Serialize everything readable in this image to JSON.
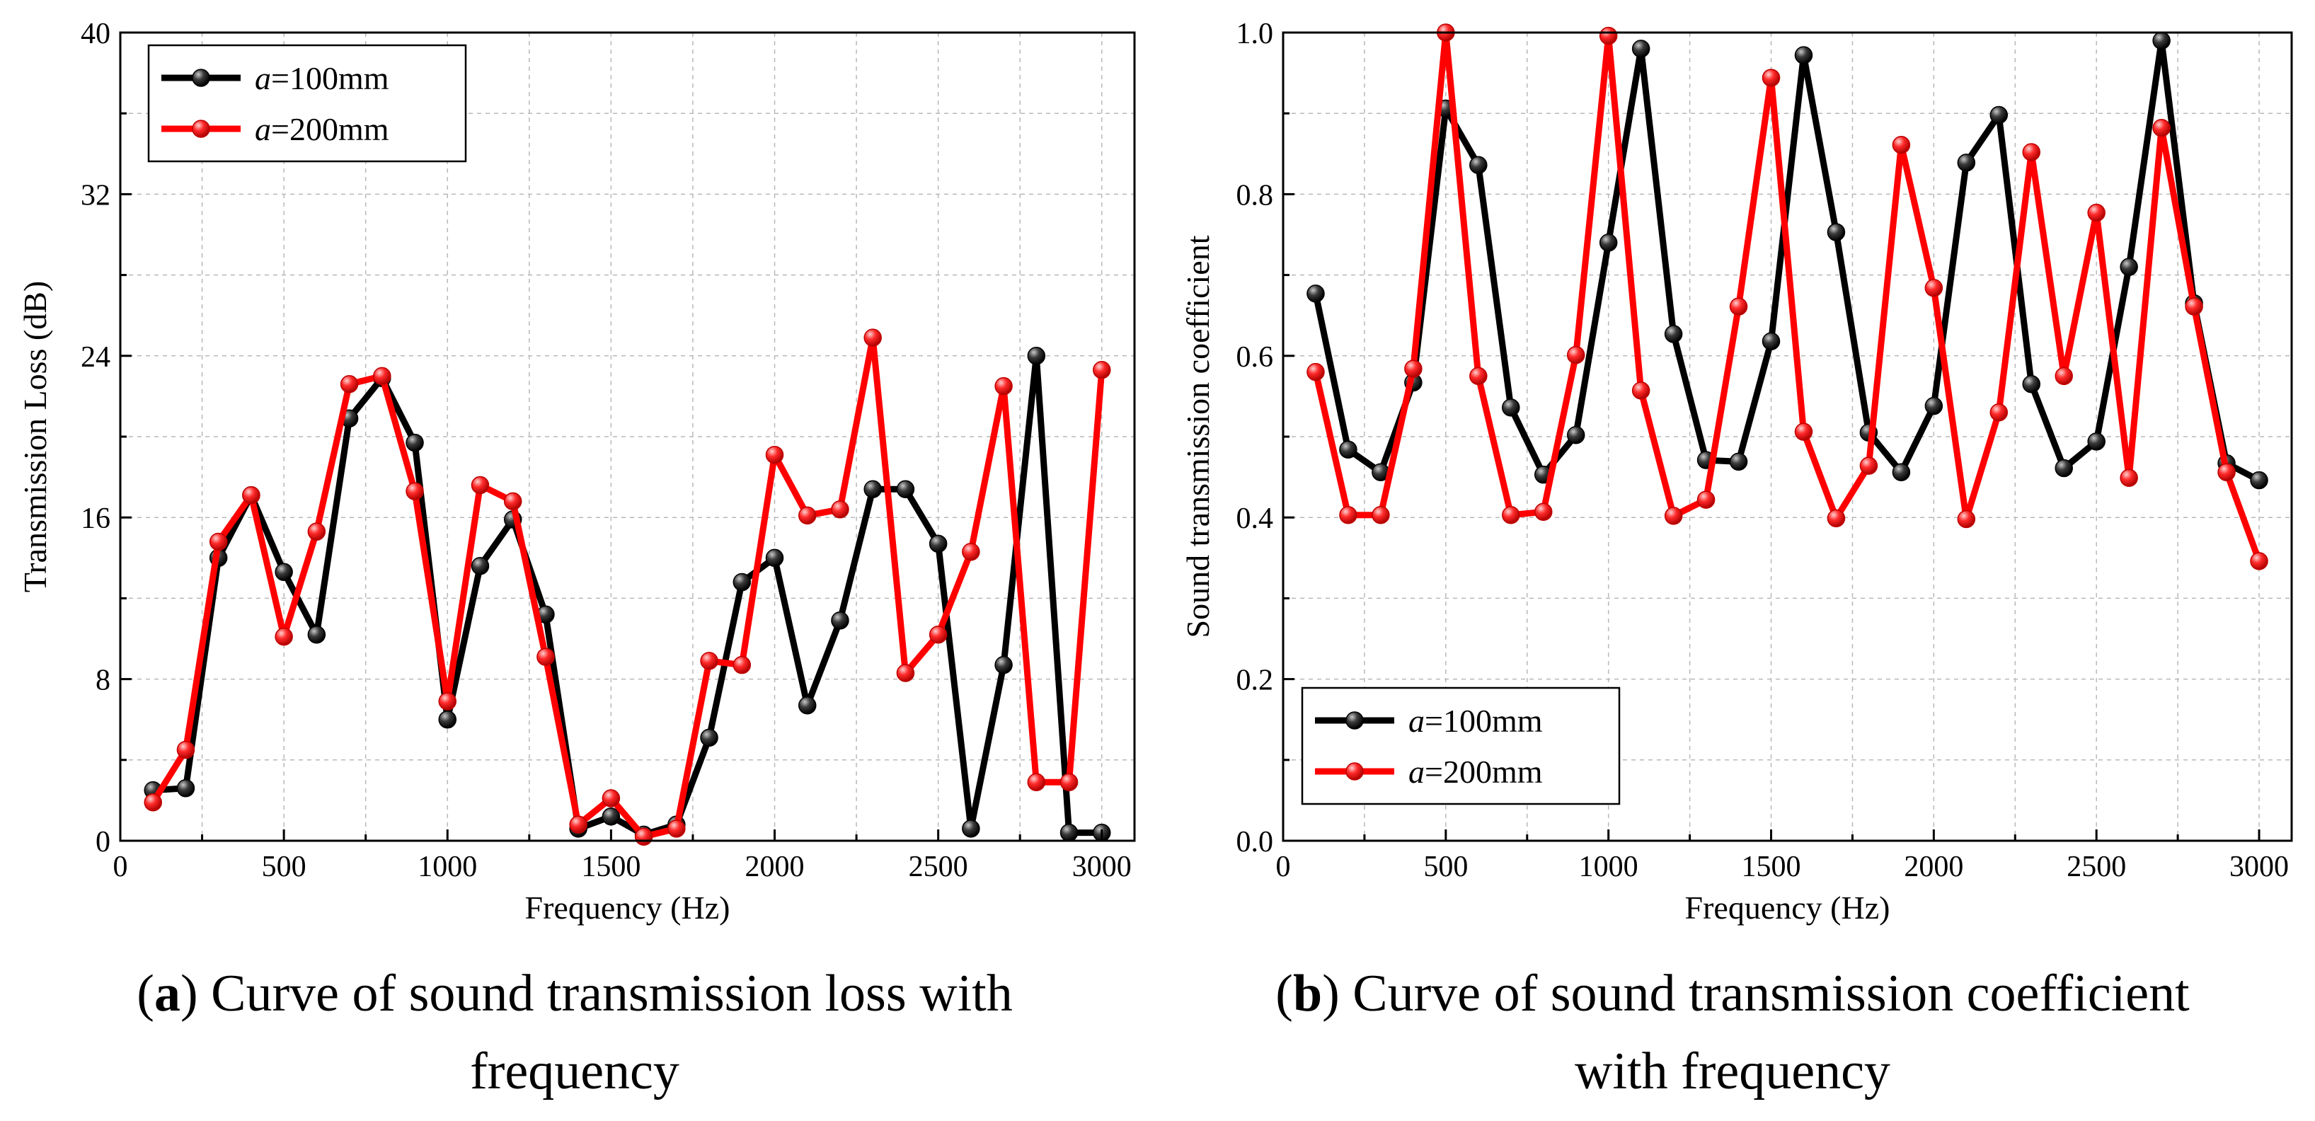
{
  "captions": [
    {
      "letter": "a",
      "open": "(",
      "close": ")",
      "lines": [
        "Curve of sound transmission loss with",
        "frequency"
      ]
    },
    {
      "letter": "b",
      "open": "(",
      "close": ")",
      "lines": [
        "Curve of sound transmission coefficient",
        "with frequency"
      ]
    }
  ],
  "chart_data": [
    {
      "type": "line",
      "xlabel": "Frequency (Hz)",
      "ylabel": "Transmission Loss (dB)",
      "xlim": [
        0,
        3100
      ],
      "ylim": [
        0,
        40
      ],
      "xticks": [
        0,
        500,
        1000,
        1500,
        2000,
        2500,
        3000
      ],
      "yticks": [
        0,
        8,
        16,
        24,
        32,
        40
      ],
      "ytick_labels": [
        "0",
        "8",
        "16",
        "24",
        "32",
        "40"
      ],
      "grid": true,
      "legend_position": "top-left",
      "x": [
        100,
        200,
        300,
        400,
        500,
        600,
        700,
        800,
        900,
        1000,
        1100,
        1200,
        1300,
        1400,
        1500,
        1600,
        1700,
        1800,
        1900,
        2000,
        2100,
        2200,
        2300,
        2400,
        2500,
        2600,
        2700,
        2800,
        2900,
        3000
      ],
      "series": [
        {
          "name_italic": "a",
          "name_rest": "=100mm",
          "color": "#000000",
          "values": [
            2.5,
            2.6,
            14.0,
            17.1,
            13.3,
            10.2,
            20.9,
            22.9,
            19.7,
            6.0,
            13.6,
            15.9,
            11.2,
            0.6,
            1.2,
            0.3,
            0.8,
            5.1,
            12.8,
            14.0,
            6.7,
            10.9,
            17.4,
            17.4,
            14.7,
            0.6,
            8.7,
            24.0,
            0.4,
            0.4
          ]
        },
        {
          "name_italic": "a",
          "name_rest": "=200mm",
          "color": "#ff0000",
          "values": [
            1.9,
            4.5,
            14.8,
            17.1,
            10.1,
            15.3,
            22.6,
            23.0,
            17.3,
            6.9,
            17.6,
            16.8,
            9.1,
            0.8,
            2.1,
            0.2,
            0.6,
            8.9,
            8.7,
            19.1,
            16.1,
            16.4,
            24.9,
            8.3,
            10.2,
            14.3,
            22.5,
            2.9,
            2.9,
            23.3
          ]
        }
      ]
    },
    {
      "type": "line",
      "xlabel": "Frequency (Hz)",
      "ylabel": "Sound transmission coefficient",
      "xlim": [
        0,
        3100
      ],
      "ylim": [
        0,
        1
      ],
      "xticks": [
        0,
        500,
        1000,
        1500,
        2000,
        2500,
        3000
      ],
      "yticks": [
        0,
        0.2,
        0.4,
        0.6,
        0.8,
        1.0
      ],
      "ytick_labels": [
        "0.0",
        "0.2",
        "0.4",
        "0.6",
        "0.8",
        "1.0"
      ],
      "grid": true,
      "legend_position": "bottom-left",
      "x": [
        100,
        200,
        300,
        400,
        500,
        600,
        700,
        800,
        900,
        1000,
        1100,
        1200,
        1300,
        1400,
        1500,
        1600,
        1700,
        1800,
        1900,
        2000,
        2100,
        2200,
        2300,
        2400,
        2500,
        2600,
        2700,
        2800,
        2900,
        3000
      ],
      "series": [
        {
          "name_italic": "a",
          "name_rest": "=100mm",
          "color": "#000000",
          "values": [
            0.677,
            0.484,
            0.456,
            0.567,
            0.906,
            0.836,
            0.536,
            0.453,
            0.502,
            0.74,
            0.98,
            0.627,
            0.471,
            0.469,
            0.618,
            0.972,
            0.753,
            0.505,
            0.456,
            0.538,
            0.839,
            0.898,
            0.565,
            0.461,
            0.494,
            0.71,
            0.99,
            0.665,
            0.467,
            0.446
          ]
        },
        {
          "name_italic": "a",
          "name_rest": "=200mm",
          "color": "#ff0000",
          "values": [
            0.58,
            0.403,
            0.403,
            0.584,
            1.0,
            0.575,
            0.403,
            0.407,
            0.601,
            0.996,
            0.557,
            0.402,
            0.422,
            0.661,
            0.944,
            0.506,
            0.399,
            0.464,
            0.861,
            0.684,
            0.398,
            0.53,
            0.852,
            0.575,
            0.777,
            0.449,
            0.882,
            0.661,
            0.456,
            0.346
          ]
        }
      ]
    }
  ]
}
